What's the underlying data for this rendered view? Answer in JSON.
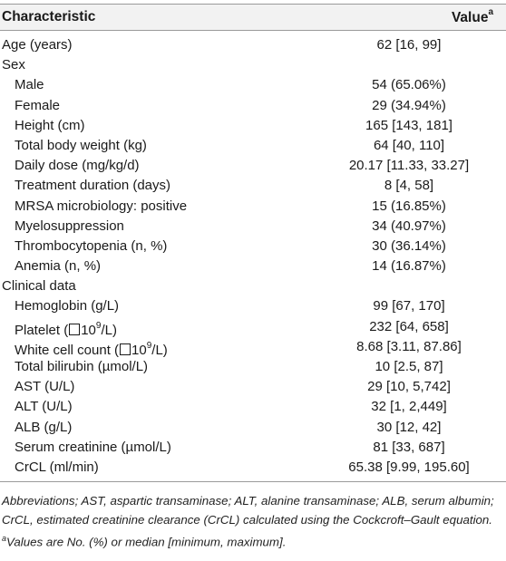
{
  "header": {
    "col1": "Characteristic",
    "col2": "Value",
    "col2_sup": "a"
  },
  "rows": [
    {
      "type": "top",
      "label": "Age (years)",
      "value": "62 [16, 99]"
    },
    {
      "type": "section",
      "label": "Sex",
      "value": ""
    },
    {
      "type": "sub",
      "label": "Male",
      "value": "54 (65.06%)"
    },
    {
      "type": "sub",
      "label": "Female",
      "value": "29 (34.94%)"
    },
    {
      "type": "sub",
      "label": "Height (cm)",
      "value": "165 [143, 181]"
    },
    {
      "type": "sub",
      "label": "Total body weight (kg)",
      "value": "64 [40, 110]"
    },
    {
      "type": "sub",
      "label": "Daily dose (mg/kg/d)",
      "value": "20.17 [11.33, 33.27]"
    },
    {
      "type": "sub",
      "label": "Treatment duration (days)",
      "value": "8 [4, 58]"
    },
    {
      "type": "sub",
      "label": "MRSA microbiology: positive",
      "value": "15 (16.85%)"
    },
    {
      "type": "sub",
      "label": "Myelosuppression",
      "value": "34 (40.97%)"
    },
    {
      "type": "sub",
      "label": "Thrombocytopenia (n, %)",
      "value": "30 (36.14%)"
    },
    {
      "type": "sub",
      "label": "Anemia (n, %)",
      "value": "14 (16.87%)"
    },
    {
      "type": "section",
      "label": "Clinical data",
      "value": ""
    },
    {
      "type": "sub",
      "label": "Hemoglobin (g/L)",
      "value": "99 [67, 170]"
    },
    {
      "type": "sub",
      "label_pre": "Platelet (",
      "label_exp": "9",
      "label_post": "/L)",
      "box": true,
      "value": "232 [64, 658]"
    },
    {
      "type": "sub",
      "label_pre": "White cell count (",
      "label_exp": "9",
      "label_post": "/L)",
      "box": true,
      "value": "8.68 [3.11, 87.86]"
    },
    {
      "type": "sub",
      "label": "Total bilirubin (µmol/L)",
      "value": "10 [2.5, 87]"
    },
    {
      "type": "sub",
      "label": "AST (U/L)",
      "value": "29 [10, 5,742]"
    },
    {
      "type": "sub",
      "label": "ALT (U/L)",
      "value": "32 [1, 2,449]"
    },
    {
      "type": "sub",
      "label": "ALB (g/L)",
      "value": "30 [12, 42]"
    },
    {
      "type": "sub",
      "label": "Serum creatinine (µmol/L)",
      "value": "81 [33, 687]"
    },
    {
      "type": "sub",
      "label": "CrCL (ml/min)",
      "value": "65.38 [9.99, 195.60]"
    }
  ],
  "notes": {
    "abbreviations": "Abbreviations; AST, aspartic transaminase; ALT, alanine transaminase; ALB, serum albumin; CrCL, estimated creatinine clearance (CrCL) calculated using the Cockcroft–Gault equation.",
    "footnote_mark": "a",
    "footnote": "Values are No. (%) or median [minimum, maximum]."
  }
}
